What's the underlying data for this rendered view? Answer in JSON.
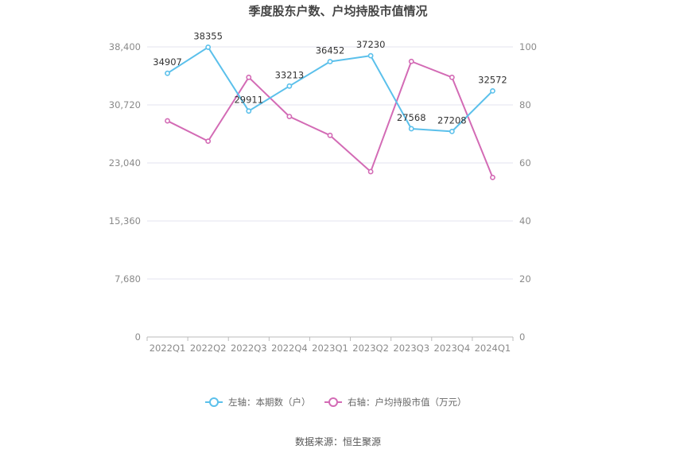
{
  "chart_data": {
    "type": "line",
    "title": "季度股东户数、户均持股市值情况",
    "categories": [
      "2022Q1",
      "2022Q2",
      "2022Q3",
      "2022Q4",
      "2023Q1",
      "2023Q2",
      "2023Q3",
      "2023Q4",
      "2024Q1"
    ],
    "series": [
      {
        "name": "左轴：本期数（户）",
        "axis": "left",
        "color": "#5bc0eb",
        "values": [
          34907,
          38355,
          29911,
          33213,
          36452,
          37230,
          27568,
          27208,
          32572
        ],
        "labels": [
          "34907",
          "38355",
          "29911",
          "33213",
          "36452",
          "37230",
          "27568",
          "27208",
          "32572"
        ]
      },
      {
        "name": "右轴：户均持股市值（万元）",
        "axis": "right",
        "color": "#d36bb5",
        "values": [
          74.5,
          67.5,
          89.5,
          76,
          69.5,
          57,
          95,
          89.5,
          55
        ]
      }
    ],
    "left_axis": {
      "ticks": [
        0,
        7680,
        15360,
        23040,
        30720,
        38400
      ],
      "tick_labels": [
        "0",
        "7,680",
        "15,360",
        "23,040",
        "30,720",
        "38,400"
      ],
      "ylim": [
        0,
        38400
      ]
    },
    "right_axis": {
      "ticks": [
        0,
        20,
        40,
        60,
        80,
        100
      ],
      "tick_labels": [
        "0",
        "20",
        "40",
        "60",
        "80",
        "100"
      ],
      "ylim": [
        0,
        100
      ]
    },
    "grid": true,
    "legend_position": "bottom"
  },
  "source_text": "数据来源：恒生聚源"
}
